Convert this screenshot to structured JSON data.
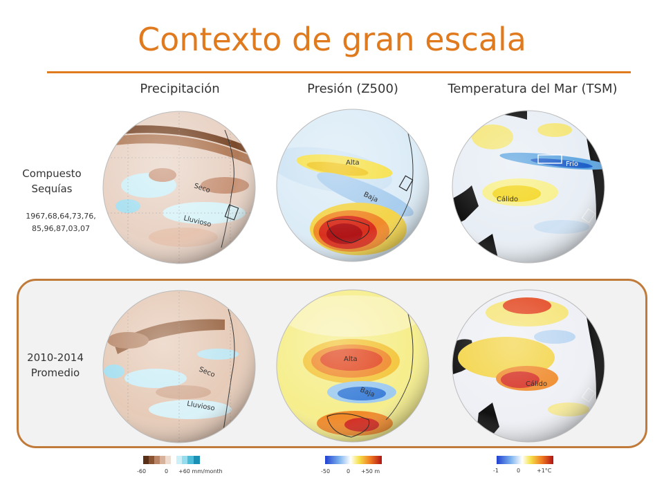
{
  "title": "Contexto de gran escala",
  "columns": {
    "precip": "Precipitación",
    "pressure": "Presión (Z500)",
    "sst": "Temperatura del Mar (TSM)"
  },
  "rows": {
    "composite_label": "Compuesto\nSequías",
    "composite_years": "1967,68,64,73,76,\n85,96,87,03,07",
    "recent_label": "2010-2014\nPromedio"
  },
  "globe_labels": {
    "dry": "Seco",
    "wet": "Lluvioso",
    "high": "Alta",
    "low": "Baja",
    "cold": "Frío",
    "warm": "Cálido"
  },
  "colorbars": {
    "precip": {
      "min": "-60",
      "mid": "0",
      "max": "+60 mm/month"
    },
    "pressure": {
      "min": "-50",
      "mid": "0",
      "max": "+50 m"
    },
    "sst": {
      "min": "-1",
      "mid": "0",
      "max": "+1°C"
    }
  },
  "colors": {
    "accent": "#e07a1f",
    "panel_border": "#c07a3a"
  }
}
